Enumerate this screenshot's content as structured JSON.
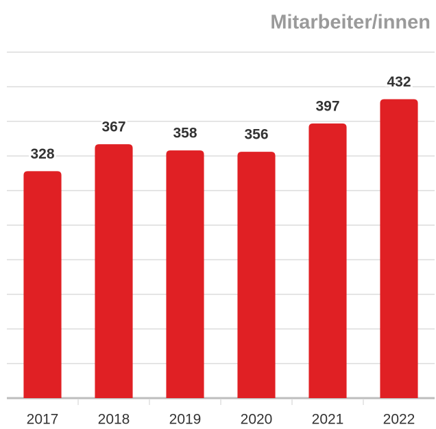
{
  "chart_data": {
    "type": "bar",
    "title": "Mitarbeiter/innen",
    "categories": [
      "2017",
      "2018",
      "2019",
      "2020",
      "2021",
      "2022"
    ],
    "values": [
      328,
      367,
      358,
      356,
      397,
      432
    ],
    "color": "#e02024",
    "ylim": [
      0,
      500
    ],
    "yticks": [
      0,
      50,
      100,
      150,
      200,
      250,
      300,
      350,
      400,
      450,
      500
    ],
    "grid": true
  }
}
